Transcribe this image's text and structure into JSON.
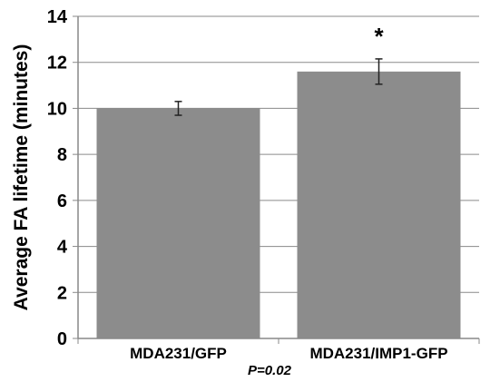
{
  "chart_data": {
    "type": "bar",
    "title": "",
    "xlabel": "",
    "ylabel": "Average FA lifetime (minutes)",
    "categories": [
      "MDA231/GFP",
      "MDA231/IMP1-GFP"
    ],
    "values": [
      10.0,
      11.6
    ],
    "error": [
      0.3,
      0.55
    ],
    "ylim": [
      0,
      14
    ],
    "yticks": [
      "0",
      "2",
      "4",
      "6",
      "8",
      "10",
      "12",
      "14"
    ],
    "grid": true,
    "legend": "none",
    "annotations": [
      {
        "text": "*",
        "category": "MDA231/IMP1-GFP"
      },
      {
        "text": "P=0.02",
        "position": "below-x-axis"
      }
    ],
    "colors": {
      "bar": "#8c8c8c",
      "grid": "#8a8a8a",
      "axis": "#888888",
      "error_bar": "#222222",
      "text": "#000000"
    }
  }
}
